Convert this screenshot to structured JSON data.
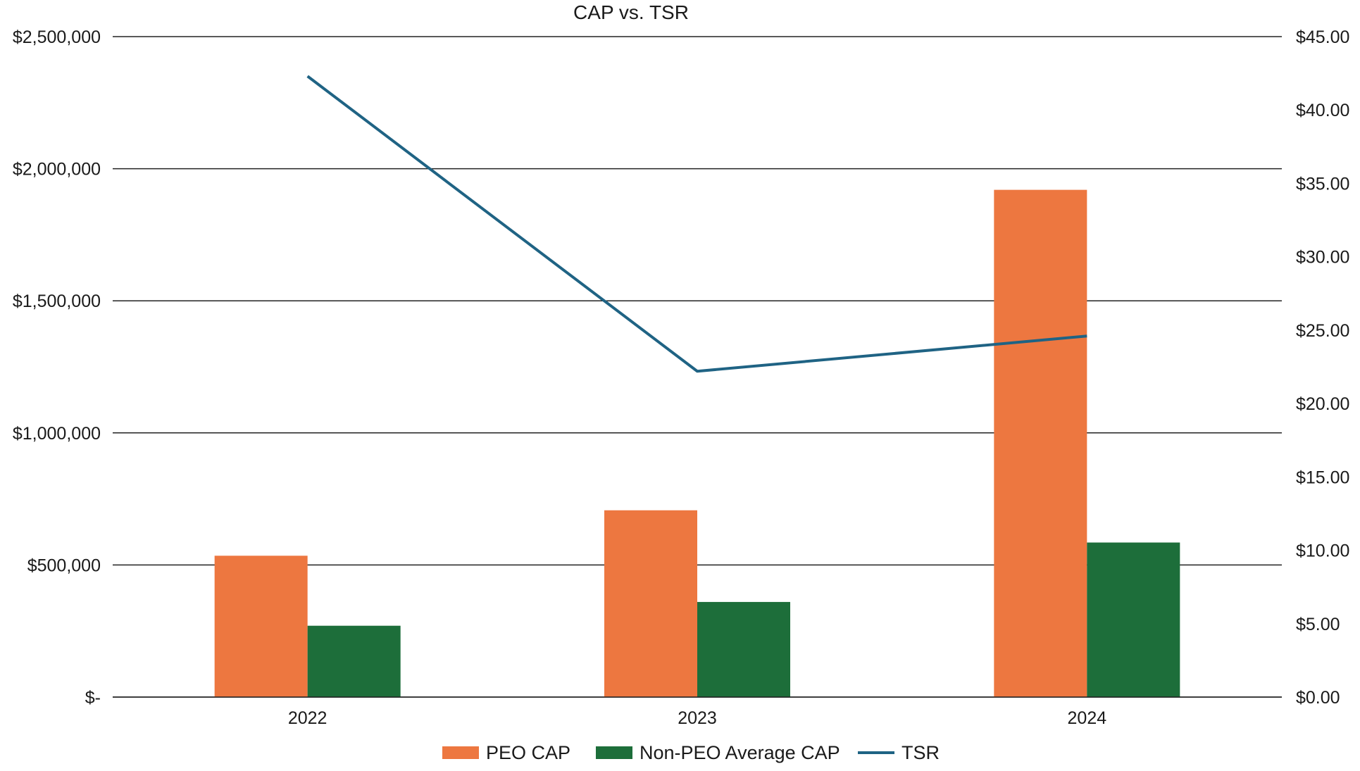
{
  "chart_data": {
    "type": "bar",
    "title": "CAP vs. TSR",
    "categories": [
      "2022",
      "2023",
      "2024"
    ],
    "series": [
      {
        "name": "PEO CAP",
        "kind": "bar",
        "axis": "left",
        "color": "#ED7740",
        "values": [
          535000,
          707000,
          1920000
        ]
      },
      {
        "name": "Non-PEO Average CAP",
        "kind": "bar",
        "axis": "left",
        "color": "#1D6E3A",
        "values": [
          270000,
          360000,
          585000
        ]
      },
      {
        "name": "TSR",
        "kind": "line",
        "axis": "right",
        "color": "#1F6384",
        "values": [
          42.3,
          22.2,
          24.6
        ]
      }
    ],
    "y_left": {
      "ylim": [
        0,
        2500000
      ],
      "ticks": [
        0,
        500000,
        1000000,
        1500000,
        2000000,
        2500000
      ],
      "tick_labels": [
        "$-",
        "$500,000",
        "$1,000,000",
        "$1,500,000",
        "$2,000,000",
        "$2,500,000"
      ]
    },
    "y_right": {
      "ylim": [
        0,
        45
      ],
      "ticks": [
        0,
        5,
        10,
        15,
        20,
        25,
        30,
        35,
        40,
        45
      ],
      "tick_labels": [
        "$0.00",
        "$5.00",
        "$10.00",
        "$15.00",
        "$20.00",
        "$25.00",
        "$30.00",
        "$35.00",
        "$40.00",
        "$45.00"
      ]
    },
    "grid": true,
    "legend_position": "bottom-center"
  }
}
